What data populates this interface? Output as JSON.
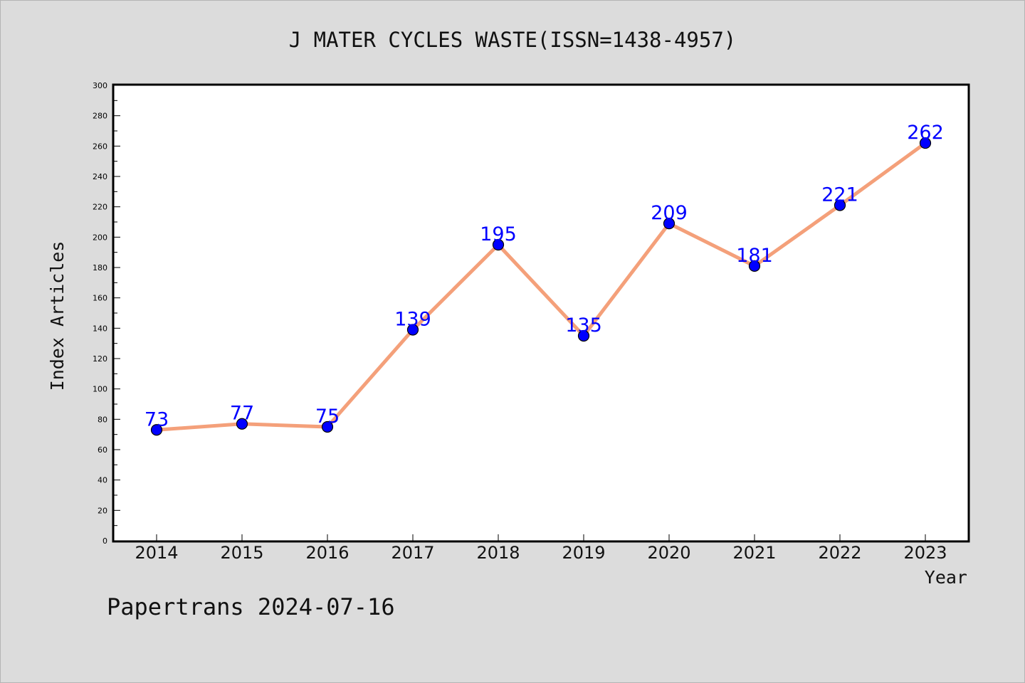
{
  "chart_data": {
    "type": "line",
    "title": "J MATER CYCLES WASTE(ISSN=1438-4957)",
    "xlabel": "Year",
    "ylabel": "Index Articles",
    "categories": [
      "2014",
      "2015",
      "2016",
      "2017",
      "2018",
      "2019",
      "2020",
      "2021",
      "2022",
      "2023"
    ],
    "series": [
      {
        "values": [
          73,
          77,
          75,
          139,
          195,
          135,
          209,
          181,
          221,
          262
        ]
      }
    ],
    "ylim": [
      0,
      300
    ],
    "yticks": [
      0,
      20,
      40,
      60,
      80,
      100,
      120,
      140,
      160,
      180,
      200,
      220,
      240,
      260,
      280,
      300
    ],
    "grid": false,
    "data_labels": true,
    "colors": {
      "line": "#f4a07a",
      "marker": "#0000ff",
      "label": "#0000ff"
    }
  },
  "footer": "Papertrans 2024-07-16"
}
